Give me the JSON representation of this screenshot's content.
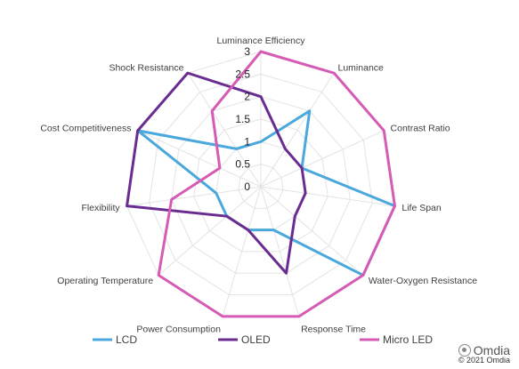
{
  "chart_data": {
    "type": "radar",
    "axes": [
      "Luminance Efficiency",
      "Luminance",
      "Contrast Ratio",
      "Life Span",
      "Water-Oxygen Resistance",
      "Response Time",
      "Power Consumption",
      "Operating Temperature",
      "Flexibility",
      "Cost Competitiveness",
      "Shock Resistance"
    ],
    "ticks": [
      "0",
      "0.5",
      "1",
      "1.5",
      "2",
      "2.5",
      "3"
    ],
    "rlim": [
      0,
      3
    ],
    "grid": true,
    "legend_position": "bottom",
    "series": [
      {
        "name": "LCD",
        "color": "#4aa8dc",
        "values": [
          1.0,
          2.0,
          1.0,
          3.0,
          3.0,
          1.0,
          1.0,
          1.0,
          1.0,
          3.0,
          1.0
        ]
      },
      {
        "name": "OLED",
        "color": "#6a2c91",
        "values": [
          2.0,
          1.0,
          1.0,
          1.0,
          1.0,
          2.0,
          1.0,
          1.0,
          3.0,
          3.0,
          3.0
        ]
      },
      {
        "name": "Micro LED",
        "color": "#d65bb5",
        "values": [
          3.0,
          3.0,
          3.0,
          3.0,
          3.0,
          3.0,
          3.0,
          3.0,
          2.0,
          1.0,
          2.0
        ]
      }
    ]
  },
  "watermark": {
    "brand": "Omdia",
    "copyright": "© 2021 Omdia",
    "icon": "wechat-icon"
  }
}
